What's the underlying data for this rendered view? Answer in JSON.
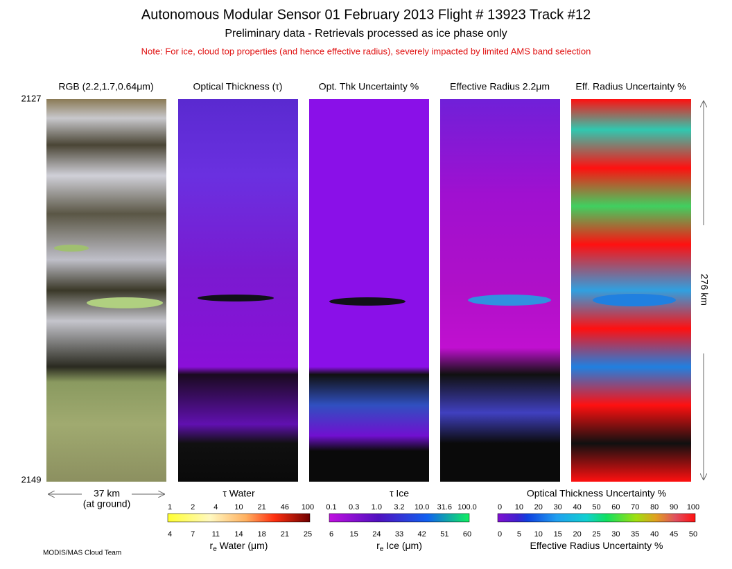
{
  "header": {
    "title": "Autonomous Modular Sensor  01 February 2013  Flight # 13923 Track #12",
    "subtitle": "Preliminary data - Retrievals processed as ice phase only",
    "note": "Note: For ice, cloud top properties (and hence effective radius), severely impacted by limited AMS band selection"
  },
  "panels": [
    {
      "title": "RGB (2.2,1.7,0.64μm)"
    },
    {
      "title": "Optical Thickness (τ)"
    },
    {
      "title": "Opt. Thk Uncertainty %"
    },
    {
      "title": "Effective Radius 2.2μm"
    },
    {
      "title": "Eff. Radius Uncertainty %"
    }
  ],
  "scanlines": {
    "top": "2127",
    "bottom": "2149"
  },
  "width_label": {
    "line1": "37 km",
    "line2": "(at ground)"
  },
  "length_label": "276 km",
  "colorbars": [
    {
      "top_title": "τ Water",
      "top_ticks": [
        "1",
        "2",
        "4",
        "10",
        "21",
        "46",
        "100"
      ],
      "bottom_ticks": [
        "4",
        "7",
        "11",
        "14",
        "18",
        "21",
        "25"
      ],
      "bottom_title": {
        "symbol": "r",
        "subscript": "e",
        "text": " Water (μm)"
      }
    },
    {
      "top_title": "τ Ice",
      "top_ticks": [
        "0.1",
        "0.3",
        "1.0",
        "3.2",
        "10.0",
        "31.6",
        "100.0"
      ],
      "bottom_ticks": [
        "6",
        "15",
        "24",
        "33",
        "42",
        "51",
        "60"
      ],
      "bottom_title": {
        "symbol": "r",
        "subscript": "e",
        "text": " Ice (μm)"
      }
    },
    {
      "top_title": "Optical Thickness Uncertainty %",
      "top_ticks": [
        "0",
        "10",
        "20",
        "30",
        "40",
        "50",
        "60",
        "70",
        "80",
        "90",
        "100"
      ],
      "bottom_ticks": [
        "0",
        "5",
        "10",
        "15",
        "20",
        "25",
        "30",
        "35",
        "40",
        "45",
        "50"
      ],
      "bottom_title": {
        "text": "Effective Radius Uncertainty %"
      }
    }
  ],
  "footer": "MODIS/MAS Cloud Team"
}
